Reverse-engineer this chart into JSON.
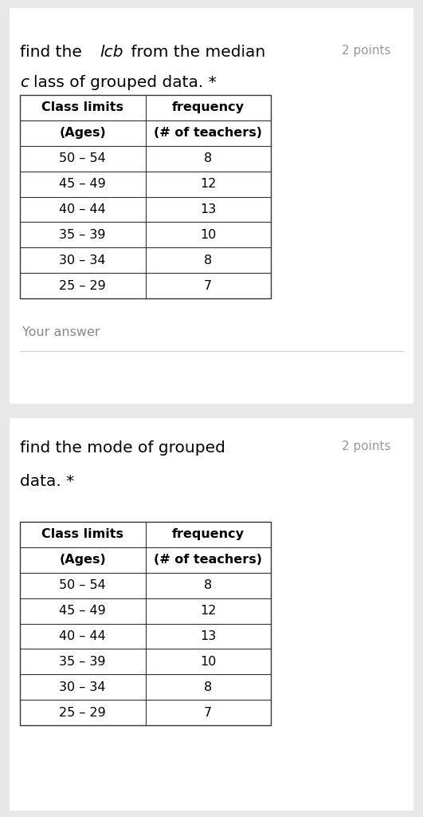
{
  "section1": {
    "title_part1": "find the ",
    "title_italic": "lcb",
    "title_part2": " from the median",
    "title_line2_italic": "c",
    "title_line2_rest": "lass of grouped data. *",
    "points": "2 points",
    "col1_header1": "Class limits",
    "col1_header2": "(Ages)",
    "col2_header1": "frequency",
    "col2_header2": "(# of teachers)",
    "rows": [
      [
        "50 – 54",
        "8"
      ],
      [
        "45 – 49",
        "12"
      ],
      [
        "40 – 44",
        "13"
      ],
      [
        "35 – 39",
        "10"
      ],
      [
        "30 – 34",
        "8"
      ],
      [
        "25 – 29",
        "7"
      ]
    ],
    "your_answer": "Your answer"
  },
  "section2": {
    "title_line1": "find the mode of grouped",
    "title_line2": "data. *",
    "points": "2 points",
    "col1_header1": "Class limits",
    "col1_header2": "(Ages)",
    "col2_header1": "frequency",
    "col2_header2": "(# of teachers)",
    "rows": [
      [
        "50 – 54",
        "8"
      ],
      [
        "45 – 49",
        "12"
      ],
      [
        "40 – 44",
        "13"
      ],
      [
        "35 – 39",
        "10"
      ],
      [
        "30 – 34",
        "8"
      ],
      [
        "25 – 29",
        "7"
      ]
    ]
  },
  "bg_color": "#e8e8e8",
  "card_color": "#ffffff",
  "text_color": "#000000",
  "points_color": "#999999",
  "answer_color": "#888888",
  "font_size_title": 14.5,
  "font_size_points": 11,
  "font_size_table": 11.5,
  "font_size_answer": 11.5,
  "table_header_bold": true
}
